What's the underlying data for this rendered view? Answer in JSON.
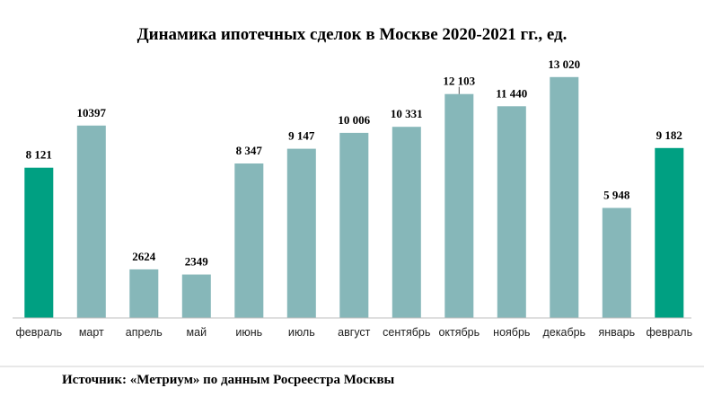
{
  "chart_data": {
    "type": "bar",
    "title": "Динамика ипотечных сделок в Москве 2020-2021 гг., ед.",
    "categories": [
      "февраль",
      "март",
      "апрель",
      "май",
      "июнь",
      "июль",
      "август",
      "сентябрь",
      "октябрь",
      "ноябрь",
      "декабрь",
      "январь",
      "февраль"
    ],
    "values": [
      8121,
      10397,
      2624,
      2349,
      8347,
      9147,
      10006,
      10331,
      12103,
      11440,
      13020,
      5948,
      9182
    ],
    "value_labels": [
      "8 121",
      "10397",
      "2624",
      "2349",
      "8 347",
      "9 147",
      "10 006",
      "10 331",
      "12 103",
      "11 440",
      "13 020",
      "5 948",
      "9 182"
    ],
    "highlight_indices": [
      0,
      12
    ],
    "ylim": [
      0,
      13300
    ],
    "grid": false,
    "legend": "none",
    "colors": {
      "bar": "#86B7B9",
      "highlight": "#00A082",
      "axis": "#BFBFBF"
    }
  },
  "source": "Источник: «Метриум» по данным Росреестра Москвы"
}
